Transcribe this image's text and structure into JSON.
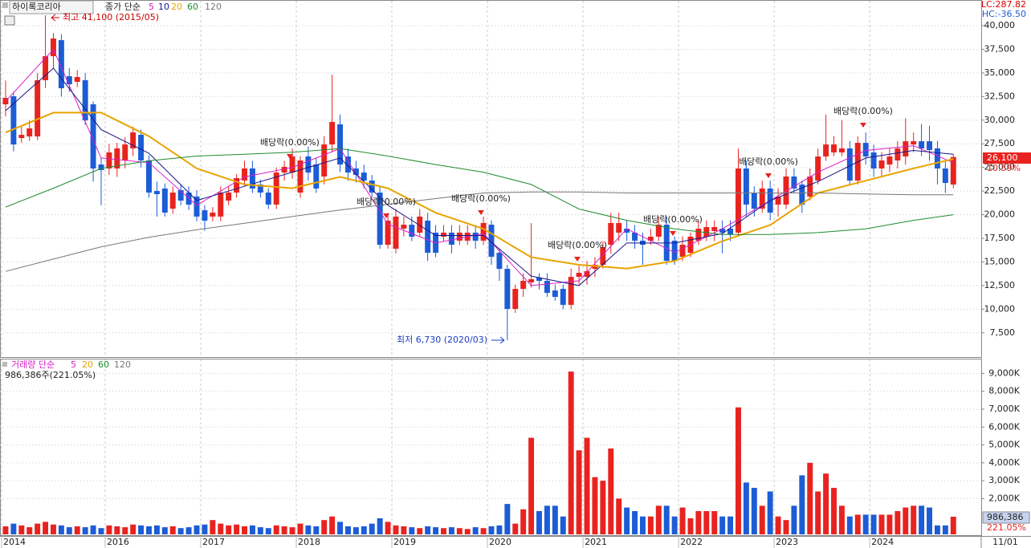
{
  "header": {
    "stock": "하이록코리아",
    "ma_label": "종가 단순",
    "lc": "LC:287.82",
    "hc": "HC:-36.50",
    "last_date": "11/01"
  },
  "chart_data": [
    {
      "type": "candlestick",
      "up_color": "#e8231f",
      "down_color": "#1c5cd6",
      "grid": true,
      "xlim": [
        -0.5,
        122.5
      ],
      "xticks": [
        {
          "value": -0.5,
          "label": "2014"
        },
        {
          "value": 12.5,
          "label": "2016"
        },
        {
          "value": 24.5,
          "label": "2017"
        },
        {
          "value": 36.5,
          "label": "2018"
        },
        {
          "value": 48.5,
          "label": "2019"
        },
        {
          "value": 60.5,
          "label": "2020"
        },
        {
          "value": 72.5,
          "label": "2021"
        },
        {
          "value": 84.5,
          "label": "2022"
        },
        {
          "value": 96.5,
          "label": "2023"
        },
        {
          "value": 108.5,
          "label": "2024"
        }
      ],
      "ylim": [
        5360,
        40850
      ],
      "yticks": [
        {
          "value": 7500,
          "label": "7,500"
        },
        {
          "value": 10000,
          "label": "10,000"
        },
        {
          "value": 12500,
          "label": "12,500"
        },
        {
          "value": 15000,
          "label": "15,000"
        },
        {
          "value": 17500,
          "label": "17,500"
        },
        {
          "value": 20000,
          "label": "20,000"
        },
        {
          "value": 22500,
          "label": "22,500"
        },
        {
          "value": 25000,
          "label": "25,000"
        },
        {
          "value": 27500,
          "label": "27,500"
        },
        {
          "value": 30000,
          "label": "30,000"
        },
        {
          "value": 32500,
          "label": "32,500"
        },
        {
          "value": 35000,
          "label": "35,000"
        },
        {
          "value": 37500,
          "label": "37,500"
        },
        {
          "value": 40000,
          "label": "40,000"
        }
      ],
      "ohlc": [
        [
          31680,
          34200,
          30400,
          32360
        ],
        [
          32530,
          33000,
          26700,
          27430
        ],
        [
          28110,
          29300,
          27600,
          28450
        ],
        [
          28280,
          30000,
          27800,
          29130
        ],
        [
          28280,
          35000,
          27900,
          34230
        ],
        [
          34230,
          41100,
          33400,
          36770
        ],
        [
          36770,
          39200,
          35500,
          38640
        ],
        [
          38470,
          39100,
          32500,
          33380
        ],
        [
          34650,
          35500,
          33000,
          33800
        ],
        [
          34060,
          35300,
          33500,
          34570
        ],
        [
          34230,
          35000,
          29500,
          29980
        ],
        [
          31680,
          32000,
          23500,
          24890
        ],
        [
          25310,
          26000,
          21000,
          24720
        ],
        [
          24890,
          27500,
          24200,
          26590
        ],
        [
          24890,
          27600,
          24000,
          27010
        ],
        [
          25740,
          28200,
          24900,
          27430
        ],
        [
          27010,
          29300,
          26200,
          28710
        ],
        [
          28450,
          29000,
          25000,
          25740
        ],
        [
          25740,
          26300,
          21800,
          22340
        ],
        [
          22510,
          23500,
          19800,
          22170
        ],
        [
          22770,
          23300,
          19800,
          20220
        ],
        [
          20640,
          23000,
          20100,
          22340
        ],
        [
          22600,
          23200,
          21000,
          21490
        ],
        [
          22340,
          23000,
          20500,
          21070
        ],
        [
          21920,
          22600,
          19300,
          19800
        ],
        [
          20470,
          21000,
          18300,
          19370
        ],
        [
          19800,
          20800,
          19300,
          20220
        ],
        [
          19800,
          23000,
          19300,
          22340
        ],
        [
          21490,
          23000,
          21000,
          22340
        ],
        [
          22340,
          24300,
          21800,
          23870
        ],
        [
          23610,
          25700,
          23000,
          24890
        ],
        [
          24890,
          25700,
          22300,
          22770
        ],
        [
          23190,
          23700,
          21800,
          22340
        ],
        [
          22340,
          22800,
          20600,
          21070
        ],
        [
          21070,
          25000,
          20600,
          24460
        ],
        [
          24460,
          25700,
          23600,
          25060
        ],
        [
          24460,
          27000,
          23800,
          26160
        ],
        [
          22340,
          26200,
          21800,
          25740
        ],
        [
          26160,
          27200,
          23600,
          24460
        ],
        [
          25310,
          26000,
          22300,
          22770
        ],
        [
          24040,
          28300,
          23200,
          27430
        ],
        [
          27430,
          34800,
          26600,
          29810
        ],
        [
          29560,
          30600,
          24500,
          25310
        ],
        [
          26160,
          27000,
          23600,
          24460
        ],
        [
          24890,
          25700,
          23400,
          24210
        ],
        [
          24460,
          25300,
          22800,
          23610
        ],
        [
          23610,
          24200,
          21800,
          22340
        ],
        [
          22340,
          23000,
          16400,
          16820
        ],
        [
          16820,
          20200,
          16400,
          19370
        ],
        [
          16400,
          20600,
          15900,
          19800
        ],
        [
          18520,
          19800,
          17700,
          18940
        ],
        [
          18940,
          19800,
          17200,
          17670
        ],
        [
          18100,
          20600,
          17700,
          19800
        ],
        [
          19370,
          20200,
          15100,
          15970
        ],
        [
          18100,
          18900,
          15500,
          15970
        ],
        [
          17670,
          18900,
          17200,
          18100
        ],
        [
          18100,
          18900,
          15900,
          16820
        ],
        [
          17250,
          18900,
          16800,
          18100
        ],
        [
          17250,
          18900,
          16800,
          18100
        ],
        [
          18100,
          18900,
          16400,
          17250
        ],
        [
          17250,
          19800,
          16800,
          19120
        ],
        [
          18940,
          19400,
          14700,
          15550
        ],
        [
          15970,
          16400,
          13000,
          14270
        ],
        [
          14270,
          14700,
          6730,
          10030
        ],
        [
          10030,
          12600,
          9600,
          12150
        ],
        [
          12150,
          13800,
          11300,
          13000
        ],
        [
          12830,
          19100,
          12300,
          13170
        ],
        [
          13340,
          13800,
          12100,
          13000
        ],
        [
          13000,
          13800,
          11300,
          11730
        ],
        [
          11980,
          12600,
          10900,
          11300
        ],
        [
          12150,
          12600,
          10000,
          10460
        ],
        [
          10460,
          14300,
          10000,
          13420
        ],
        [
          13420,
          14700,
          12600,
          13850
        ],
        [
          13420,
          15100,
          12600,
          14020
        ],
        [
          14270,
          15500,
          13400,
          14700
        ],
        [
          14700,
          17200,
          14300,
          16570
        ],
        [
          16820,
          20200,
          15900,
          19120
        ],
        [
          18100,
          20200,
          17200,
          19120
        ],
        [
          18520,
          19400,
          17200,
          18100
        ],
        [
          18100,
          18900,
          16400,
          17250
        ],
        [
          17250,
          18100,
          14700,
          16820
        ],
        [
          17250,
          18500,
          16800,
          17670
        ],
        [
          17670,
          19800,
          17200,
          18940
        ],
        [
          18940,
          19800,
          14700,
          15120
        ],
        [
          17250,
          17700,
          14700,
          15120
        ],
        [
          15550,
          17700,
          15100,
          16820
        ],
        [
          15970,
          18100,
          15500,
          17670
        ],
        [
          17250,
          19400,
          16800,
          18520
        ],
        [
          17670,
          19400,
          17200,
          18690
        ],
        [
          18270,
          19400,
          17200,
          18690
        ],
        [
          18520,
          19400,
          15900,
          18100
        ],
        [
          18520,
          19400,
          17200,
          17930
        ],
        [
          18100,
          27000,
          17700,
          24890
        ],
        [
          24890,
          25700,
          19800,
          21070
        ],
        [
          22340,
          23000,
          19800,
          20640
        ],
        [
          20640,
          23600,
          20200,
          22770
        ],
        [
          22770,
          23600,
          19400,
          20220
        ],
        [
          21070,
          22800,
          19800,
          21920
        ],
        [
          21070,
          24900,
          20600,
          24040
        ],
        [
          24040,
          24900,
          22300,
          22770
        ],
        [
          23190,
          23600,
          20200,
          21070
        ],
        [
          21920,
          24900,
          21500,
          24040
        ],
        [
          23610,
          27000,
          23200,
          26160
        ],
        [
          26160,
          30600,
          25700,
          27430
        ],
        [
          26590,
          28300,
          26200,
          27430
        ],
        [
          26590,
          30000,
          26200,
          27010
        ],
        [
          27010,
          27800,
          23200,
          23610
        ],
        [
          23610,
          28300,
          23200,
          27600
        ],
        [
          27600,
          28700,
          25300,
          26160
        ],
        [
          26590,
          27400,
          24000,
          24890
        ],
        [
          24890,
          26600,
          24000,
          25740
        ],
        [
          25310,
          27000,
          24500,
          26160
        ],
        [
          25740,
          27800,
          24900,
          27010
        ],
        [
          26160,
          30200,
          25300,
          27770
        ],
        [
          27430,
          28700,
          26600,
          27770
        ],
        [
          27770,
          29600,
          26200,
          27010
        ],
        [
          27770,
          29400,
          25700,
          26840
        ],
        [
          27010,
          27800,
          23200,
          24890
        ],
        [
          24890,
          25700,
          22300,
          23360
        ],
        [
          23190,
          26400,
          22800,
          26100
        ]
      ],
      "ma_x": [
        0,
        6,
        12,
        18,
        24,
        30,
        36,
        42,
        48,
        54,
        60,
        66,
        72,
        78,
        84,
        90,
        96,
        102,
        108,
        114,
        119
      ],
      "series": [
        {
          "name": "5",
          "color": "#d81ec8",
          "values": [
            32000,
            37500,
            26000,
            25500,
            21000,
            24000,
            25000,
            27000,
            19000,
            17000,
            18000,
            12500,
            13000,
            18500,
            16000,
            18500,
            21500,
            24500,
            26800,
            27300,
            25500
          ]
        },
        {
          "name": "10",
          "color": "#16168a",
          "values": [
            31000,
            35500,
            29000,
            26500,
            21500,
            23000,
            24500,
            26000,
            21000,
            17800,
            17800,
            13500,
            12500,
            17000,
            17000,
            18000,
            21500,
            23500,
            26000,
            26800,
            26400
          ]
        },
        {
          "name": "20",
          "color": "#e8a400",
          "values": [
            28700,
            30800,
            30800,
            28300,
            24900,
            23200,
            22800,
            24000,
            22800,
            20200,
            18500,
            15500,
            14700,
            14300,
            15100,
            17200,
            18900,
            22300,
            23600,
            24900,
            25900
          ]
        },
        {
          "name": "60",
          "color": "#1e8c2e",
          "values": [
            20800,
            22800,
            24900,
            25700,
            26200,
            26400,
            26600,
            27000,
            26200,
            25300,
            24500,
            23200,
            20600,
            19400,
            18500,
            17900,
            17900,
            18100,
            18500,
            19400,
            20000
          ]
        },
        {
          "name": "120",
          "color": "#777777",
          "values": [
            14000,
            15300,
            16600,
            17600,
            18400,
            19100,
            19800,
            20500,
            21100,
            21700,
            22300,
            22400,
            22400,
            22300,
            22300,
            22300,
            22300,
            22300,
            22200,
            22100,
            22100
          ]
        }
      ],
      "annotations": [
        "최고 41,100 (2015/05)",
        "최저 6,730 (2020/03)",
        "배당락(0.00%)",
        "배당락(0.00%)",
        "배당락(0.00%)",
        "배당락(0.00%)",
        "배당락(0.00%)",
        "배당락(0.00%)",
        "배당락(0.00%)"
      ],
      "last_label": "26,100",
      "change_label": "10.59%"
    },
    {
      "type": "bar",
      "title": "거래량 단순",
      "ma_names": [
        "5",
        "20",
        "60",
        "120"
      ],
      "ma_colors": [
        "#d81ec8",
        "#e8a400",
        "#1e8c2e",
        "#777777"
      ],
      "note": "986,386주(221.05%)",
      "last_label": "986,386",
      "ratio_label": "221.05%",
      "ylim": [
        0,
        9600
      ],
      "yticks": [
        {
          "value": 2000,
          "label": "2,000K"
        },
        {
          "value": 3000,
          "label": "3,000K"
        },
        {
          "value": 4000,
          "label": "4,000K"
        },
        {
          "value": 5000,
          "label": "5,000K"
        },
        {
          "value": 6000,
          "label": "6,000K"
        },
        {
          "value": 7000,
          "label": "7,000K"
        },
        {
          "value": 8000,
          "label": "8,000K"
        },
        {
          "value": 9000,
          "label": "9,000K"
        }
      ],
      "values": [
        450,
        600,
        500,
        400,
        600,
        700,
        550,
        500,
        400,
        450,
        400,
        500,
        350,
        500,
        450,
        400,
        550,
        500,
        450,
        500,
        400,
        450,
        350,
        400,
        500,
        550,
        800,
        600,
        500,
        550,
        450,
        500,
        400,
        350,
        500,
        450,
        400,
        600,
        500,
        450,
        800,
        1000,
        700,
        450,
        400,
        450,
        600,
        900,
        700,
        500,
        450,
        400,
        350,
        450,
        400,
        350,
        400,
        350,
        300,
        400,
        350,
        450,
        500,
        1700,
        600,
        1400,
        5400,
        1300,
        1600,
        1600,
        1000,
        9100,
        4700,
        5400,
        3200,
        3000,
        4800,
        2000,
        1500,
        1300,
        1000,
        1000,
        1600,
        1600,
        1000,
        1500,
        900,
        1300,
        1300,
        1300,
        1000,
        1000,
        7100,
        2900,
        2600,
        1600,
        2400,
        1000,
        800,
        1600,
        3300,
        4000,
        2400,
        3400,
        2600,
        1600,
        1000,
        1100,
        1100,
        1100,
        1100,
        1100,
        1300,
        1500,
        1600,
        1600,
        1500,
        500,
        500,
        986.386
      ]
    }
  ]
}
